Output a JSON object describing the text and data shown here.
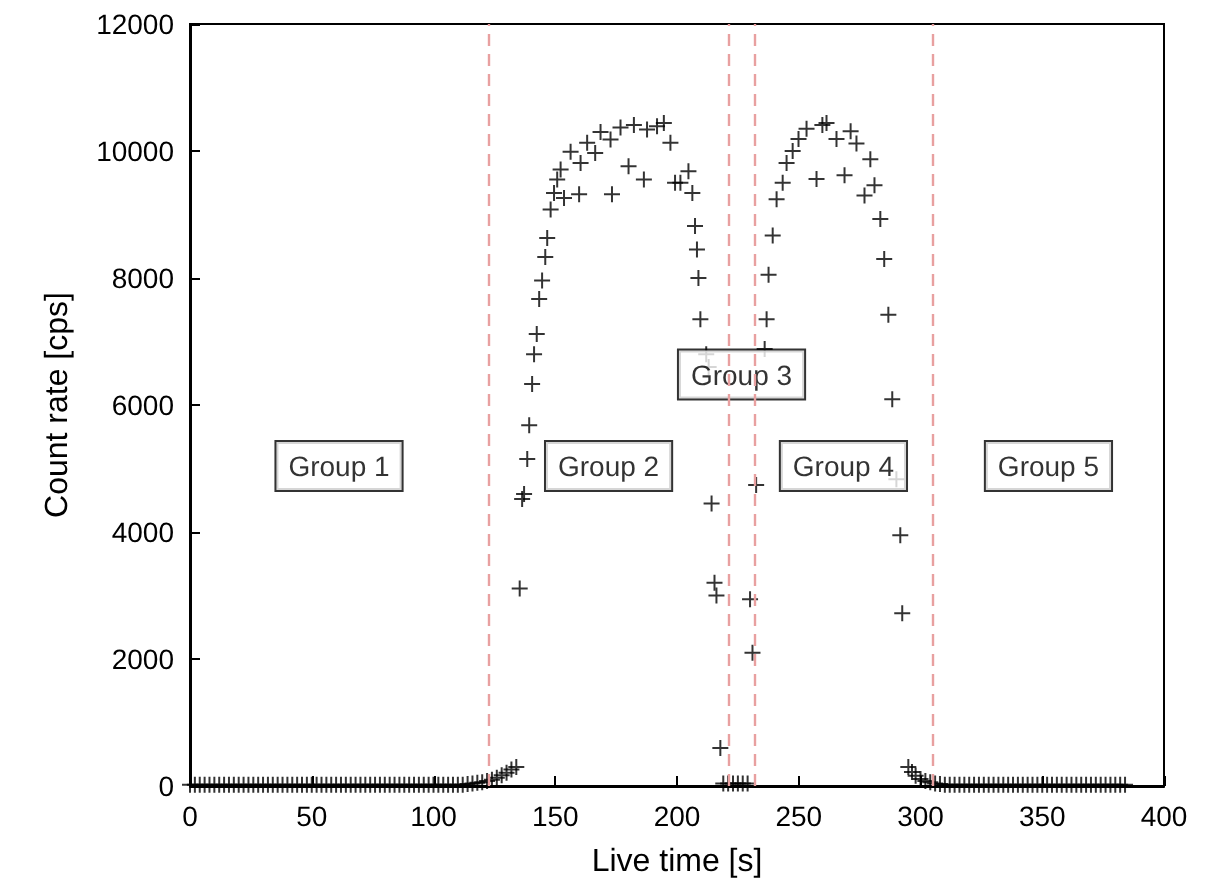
{
  "chart_data": {
    "type": "scatter",
    "xlabel": "Live time [s]",
    "ylabel": "Count rate [cps]",
    "xlim": [
      0,
      400
    ],
    "xticks": [
      0,
      50,
      100,
      150,
      200,
      250,
      300,
      350,
      400
    ],
    "ylim": [
      0,
      12000
    ],
    "yticks": [
      0,
      2000,
      4000,
      6000,
      8000,
      10000,
      12000
    ],
    "grid": false,
    "marker": "cross",
    "series": [
      {
        "color": "#000000",
        "x": [
          0,
          2,
          4,
          6,
          8,
          10,
          12,
          14,
          16,
          18,
          20,
          22,
          24,
          26,
          28,
          30,
          32,
          34,
          36,
          38,
          40,
          42,
          44,
          46,
          48,
          50,
          52,
          54,
          56,
          58,
          60,
          62,
          64,
          66,
          68,
          70,
          72,
          74,
          76,
          78,
          80,
          82,
          84,
          86,
          88,
          90,
          92,
          94,
          96,
          98,
          100,
          102,
          104,
          106,
          108,
          110,
          112,
          114,
          116,
          118,
          120,
          122,
          124,
          126,
          128,
          130,
          132,
          134,
          135.4,
          136.4,
          137.2,
          138.5,
          139.3,
          140.5,
          141.3,
          142.4,
          143.4,
          144.6,
          145.9,
          146.7,
          148.1,
          149.5,
          150.8,
          152.2,
          153.6,
          156.3,
          159.8,
          160.4,
          163.1,
          166.4,
          168.6,
          173.3,
          172.7,
          176.8,
          180.1,
          182.3,
          186.4,
          187.7,
          191.8,
          194.6,
          197.3,
          199.2,
          201.4,
          204.7,
          206.3,
          207.4,
          208.2,
          208.8,
          209.6,
          212,
          213,
          214.2,
          215.4,
          216.2,
          217.8,
          219,
          221,
          223,
          225,
          227,
          229,
          230,
          231,
          232.5,
          236,
          236.8,
          237.6,
          239.3,
          240.9,
          243.4,
          245,
          247.5,
          249.9,
          253.2,
          257.3,
          259.7,
          261.4,
          265.5,
          268.8,
          271.3,
          273.7,
          277,
          279.4,
          281.1,
          283.5,
          285.1,
          286.8,
          288.4,
          290.1,
          291.7,
          292.5,
          295,
          296.5,
          298,
          300,
          302,
          304,
          306,
          308,
          310,
          312,
          314,
          316,
          318,
          320,
          322,
          324,
          326,
          328,
          330,
          332,
          334,
          336,
          338,
          340,
          342,
          344,
          346,
          348,
          350,
          352,
          354,
          356,
          358,
          360,
          362,
          364,
          366,
          368,
          370,
          372,
          374,
          376,
          378,
          380,
          382,
          384
        ],
        "values": [
          20,
          20,
          20,
          20,
          20,
          20,
          20,
          20,
          20,
          20,
          20,
          20,
          20,
          20,
          20,
          20,
          20,
          20,
          20,
          20,
          20,
          20,
          20,
          20,
          20,
          20,
          20,
          20,
          20,
          20,
          20,
          20,
          20,
          20,
          20,
          20,
          20,
          20,
          20,
          20,
          20,
          20,
          20,
          20,
          20,
          20,
          20,
          20,
          20,
          20,
          20,
          20,
          20,
          20,
          20,
          20,
          20,
          30,
          40,
          50,
          60,
          80,
          100,
          130,
          170,
          210,
          260,
          300,
          3110,
          4520,
          4600,
          5150,
          5680,
          6330,
          6800,
          7120,
          7670,
          7960,
          8330,
          8630,
          9080,
          9340,
          9550,
          9710,
          9260,
          9990,
          9320,
          9810,
          10130,
          9970,
          10300,
          9320,
          10180,
          10370,
          9760,
          10410,
          9550,
          10340,
          10390,
          10440,
          10130,
          9500,
          9500,
          9680,
          9340,
          8820,
          8450,
          8000,
          7350,
          6800,
          6600,
          4450,
          3200,
          3000,
          600,
          40,
          40,
          40,
          40,
          40,
          40,
          2940,
          2100,
          4740,
          6880,
          7350,
          8050,
          8670,
          9240,
          9500,
          9810,
          10000,
          10190,
          10350,
          9560,
          10410,
          10440,
          10190,
          9620,
          10310,
          10120,
          9300,
          9870,
          9460,
          8930,
          8300,
          7420,
          6090,
          4830,
          3950,
          2720,
          300,
          220,
          160,
          110,
          80,
          60,
          40,
          30,
          20,
          20,
          20,
          20,
          20,
          20,
          20,
          20,
          20,
          20,
          20,
          20,
          20,
          20,
          20,
          20,
          20,
          20,
          20,
          20,
          20,
          20,
          20,
          20,
          20,
          20,
          20,
          20,
          20,
          20,
          20,
          20,
          20,
          20,
          20,
          20,
          20,
          20
        ]
      }
    ],
    "ref_lines": [
      {
        "axis": "x",
        "value": 122.4,
        "color": "#e8a0a0",
        "line_style": "dashed"
      },
      {
        "axis": "x",
        "value": 221.4,
        "color": "#e8a0a0",
        "line_style": "dashed"
      },
      {
        "axis": "x",
        "value": 231.6,
        "color": "#e8a0a0",
        "line_style": "dashed"
      },
      {
        "axis": "x",
        "value": 305.1,
        "color": "#e8a0a0",
        "line_style": "dashed"
      }
    ],
    "annotations": [
      "Group 1",
      "Group 2",
      "Group 3",
      "Group 4",
      "Group 5"
    ]
  }
}
